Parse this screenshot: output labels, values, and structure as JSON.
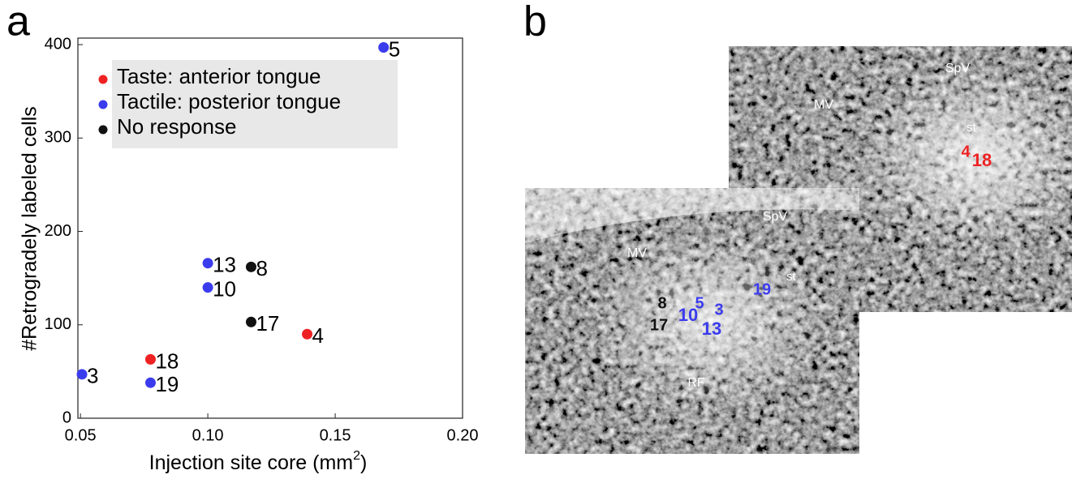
{
  "chart_data": {
    "type": "scatter",
    "xlabel": "Injection site core (mm",
    "xlabel_sup": "2",
    "xlabel_end": ")",
    "ylabel": "#Retrogradely labeled cells",
    "xlim": [
      0.049,
      0.2
    ],
    "ylim": [
      0,
      407
    ],
    "xticks": [
      0.05,
      {
        "value": 0.1,
        "label": "0.10"
      },
      0.15,
      {
        "value": 0.2,
        "label": "0.20"
      }
    ],
    "yticks": [
      0,
      100,
      200,
      300,
      400
    ],
    "series": [
      {
        "name": "Taste: anterior tongue",
        "color": "#ee2222",
        "x": [
          0.139,
          0.0775
        ],
        "values": [
          90,
          63
        ],
        "labels": [
          "4",
          "18"
        ]
      },
      {
        "name": "Tactile: posterior tongue",
        "color": "#3b3bee",
        "x": [
          0.169,
          0.1,
          0.1,
          0.0775,
          0.0506
        ],
        "values": [
          397,
          166,
          140,
          38,
          47
        ],
        "labels": [
          "5",
          "13",
          "10",
          "19",
          "3"
        ]
      },
      {
        "name": "No response",
        "color": "#111111",
        "x": [
          0.117,
          0.117
        ],
        "values": [
          162,
          103
        ],
        "labels": [
          "8",
          "17"
        ]
      }
    ],
    "legend": "upper left"
  },
  "panel_labels": [
    "a",
    "b"
  ],
  "panel_b": {
    "upper": [
      {
        "text": "MV",
        "color": "#ffffff"
      },
      {
        "text": "SpV",
        "color": "#ffffff"
      },
      {
        "text": "st",
        "color": "#ffffff"
      },
      {
        "text": "4",
        "color": "#ee2222"
      },
      {
        "text": "18",
        "color": "#ee2222"
      }
    ],
    "lower": [
      {
        "text": "SpV",
        "color": "#ffffff"
      },
      {
        "text": "MV",
        "color": "#ffffff"
      },
      {
        "text": "st",
        "color": "#ffffff"
      },
      {
        "text": "RF",
        "color": "#ffffff"
      },
      {
        "text": "8",
        "color": "#111111"
      },
      {
        "text": "17",
        "color": "#111111"
      },
      {
        "text": "10",
        "color": "#3b3bee"
      },
      {
        "text": "5",
        "color": "#3b3bee"
      },
      {
        "text": "3",
        "color": "#3b3bee"
      },
      {
        "text": "13",
        "color": "#3b3bee"
      },
      {
        "text": "19",
        "color": "#3b3bee"
      }
    ]
  }
}
